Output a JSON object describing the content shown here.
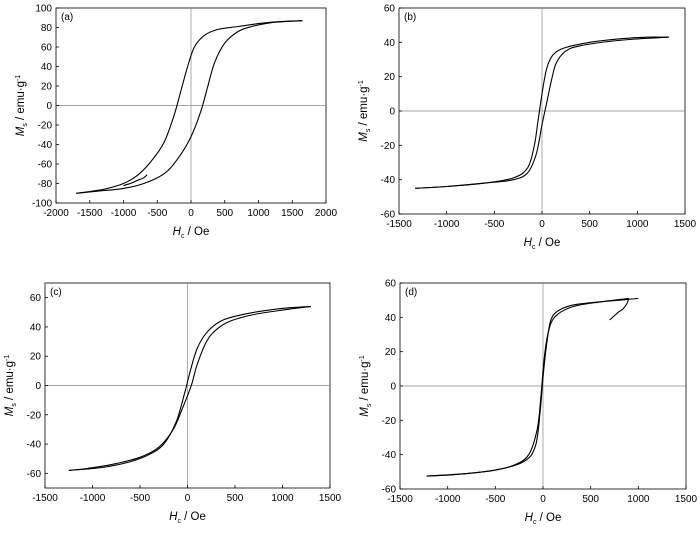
{
  "chart_data": [
    {
      "type": "line",
      "panel_label": "(a)",
      "xlabel_main": "H",
      "xlabel_sub": "c",
      "xlabel_unit": " / Oe",
      "ylabel_main": "M",
      "ylabel_sub": "s",
      "ylabel_unit": " / emu·g",
      "ylabel_sup": "-1",
      "xlim": [
        -2000,
        2000
      ],
      "ylim": [
        -100,
        100
      ],
      "xticks": [
        -2000,
        -1500,
        -1000,
        -500,
        0,
        500,
        1000,
        1500,
        2000
      ],
      "yticks": [
        -100,
        -80,
        -60,
        -40,
        -20,
        0,
        20,
        40,
        60,
        80,
        100
      ],
      "grid": false,
      "series": [
        {
          "points": [
            [
              1650,
              87
            ],
            [
              1200,
              85
            ],
            [
              900,
              81
            ],
            [
              700,
              76
            ],
            [
              500,
              64
            ],
            [
              350,
              44
            ],
            [
              250,
              20
            ],
            [
              150,
              -5
            ],
            [
              0,
              -32
            ],
            [
              -200,
              -55
            ],
            [
              -400,
              -70
            ],
            [
              -700,
              -80
            ],
            [
              -1000,
              -85
            ],
            [
              -1400,
              -88
            ],
            [
              -1700,
              -90
            ]
          ]
        },
        {
          "points": [
            [
              -1700,
              -90
            ],
            [
              -1300,
              -86
            ],
            [
              -1000,
              -80
            ],
            [
              -800,
              -72
            ],
            [
              -600,
              -58
            ],
            [
              -400,
              -38
            ],
            [
              -250,
              -10
            ],
            [
              -150,
              15
            ],
            [
              -50,
              40
            ],
            [
              50,
              60
            ],
            [
              200,
              72
            ],
            [
              400,
              78
            ],
            [
              700,
              81
            ],
            [
              1000,
              84
            ],
            [
              1300,
              86
            ],
            [
              1650,
              87
            ]
          ]
        },
        {
          "points": [
            [
              -650,
              -71
            ],
            [
              -700,
              -74
            ],
            [
              -800,
              -77
            ],
            [
              -900,
              -80
            ],
            [
              -1000,
              -82
            ]
          ]
        }
      ]
    },
    {
      "type": "line",
      "panel_label": "(b)",
      "xlabel_main": "H",
      "xlabel_sub": "c",
      "xlabel_unit": " / Oe",
      "ylabel_main": "M",
      "ylabel_sub": "s",
      "ylabel_unit": " / emu·g",
      "ylabel_sup": "-1",
      "xlim": [
        -1500,
        1500
      ],
      "ylim": [
        -60,
        60
      ],
      "xticks": [
        -1500,
        -1000,
        -500,
        0,
        500,
        1000,
        1500
      ],
      "yticks": [
        -60,
        -40,
        -20,
        0,
        20,
        40,
        60
      ],
      "grid": false,
      "series": [
        {
          "points": [
            [
              1330,
              43
            ],
            [
              1000,
              42
            ],
            [
              700,
              40.5
            ],
            [
              400,
              38
            ],
            [
              250,
              35
            ],
            [
              150,
              28
            ],
            [
              100,
              18
            ],
            [
              50,
              5
            ],
            [
              0,
              -8
            ],
            [
              -60,
              -25
            ],
            [
              -150,
              -36
            ],
            [
              -300,
              -40
            ],
            [
              -600,
              -42
            ],
            [
              -1000,
              -44
            ],
            [
              -1330,
              -45
            ]
          ]
        },
        {
          "points": [
            [
              -1330,
              -45
            ],
            [
              -1000,
              -44
            ],
            [
              -600,
              -42
            ],
            [
              -300,
              -39
            ],
            [
              -150,
              -33
            ],
            [
              -80,
              -20
            ],
            [
              -40,
              -5
            ],
            [
              0,
              10
            ],
            [
              50,
              25
            ],
            [
              120,
              33
            ],
            [
              250,
              37
            ],
            [
              500,
              40
            ],
            [
              800,
              42
            ],
            [
              1100,
              43
            ],
            [
              1330,
              43
            ]
          ]
        }
      ]
    },
    {
      "type": "line",
      "panel_label": "(c)",
      "xlabel_main": "H",
      "xlabel_sub": "c",
      "xlabel_unit": " / Oe",
      "ylabel_main": "M",
      "ylabel_sub": "s",
      "ylabel_unit": " / emu·g",
      "ylabel_sup": "-1",
      "xlim": [
        -1500,
        1500
      ],
      "ylim": [
        -70,
        70
      ],
      "xticks": [
        -1500,
        -1000,
        -500,
        0,
        500,
        1000,
        1500
      ],
      "yticks": [
        -60,
        -40,
        -20,
        0,
        20,
        40,
        60
      ],
      "grid": false,
      "series": [
        {
          "points": [
            [
              1300,
              54
            ],
            [
              1000,
              51.5
            ],
            [
              700,
              48.5
            ],
            [
              450,
              44
            ],
            [
              300,
              38
            ],
            [
              200,
              30
            ],
            [
              100,
              14
            ],
            [
              40,
              0
            ],
            [
              -50,
              -15
            ],
            [
              -150,
              -30
            ],
            [
              -300,
              -42
            ],
            [
              -500,
              -49
            ],
            [
              -800,
              -54
            ],
            [
              -1100,
              -57
            ],
            [
              -1250,
              -58
            ]
          ]
        },
        {
          "points": [
            [
              -1250,
              -58
            ],
            [
              -900,
              -56
            ],
            [
              -600,
              -52
            ],
            [
              -400,
              -47
            ],
            [
              -250,
              -40
            ],
            [
              -120,
              -25
            ],
            [
              -30,
              -5
            ],
            [
              30,
              10
            ],
            [
              100,
              25
            ],
            [
              200,
              36
            ],
            [
              350,
              44
            ],
            [
              550,
              48
            ],
            [
              800,
              51
            ],
            [
              1050,
              53
            ],
            [
              1300,
              54
            ]
          ]
        }
      ]
    },
    {
      "type": "line",
      "panel_label": "(d)",
      "xlabel_main": "H",
      "xlabel_sub": "c",
      "xlabel_unit": " / Oe",
      "ylabel_main": "M",
      "ylabel_sub": "s",
      "ylabel_unit": " / emu·g",
      "ylabel_sup": "-1",
      "xlim": [
        -1500,
        1500
      ],
      "ylim": [
        -60,
        60
      ],
      "xticks": [
        -1500,
        -1000,
        -500,
        0,
        500,
        1000,
        1500
      ],
      "yticks": [
        -60,
        -40,
        -20,
        0,
        20,
        40,
        60
      ],
      "grid": false,
      "series": [
        {
          "points": [
            [
              1000,
              51
            ],
            [
              800,
              50
            ],
            [
              500,
              48.5
            ],
            [
              300,
              47
            ],
            [
              150,
              43.5
            ],
            [
              80,
              38
            ],
            [
              40,
              25
            ],
            [
              0,
              5
            ],
            [
              -30,
              -15
            ],
            [
              -80,
              -35
            ],
            [
              -200,
              -44
            ],
            [
              -500,
              -49
            ],
            [
              -900,
              -51.5
            ],
            [
              -1220,
              -52.5
            ]
          ]
        },
        {
          "points": [
            [
              -1220,
              -52.5
            ],
            [
              -800,
              -51
            ],
            [
              -500,
              -49
            ],
            [
              -300,
              -46
            ],
            [
              -150,
              -40
            ],
            [
              -60,
              -25
            ],
            [
              -20,
              -5
            ],
            [
              10,
              15
            ],
            [
              50,
              30
            ],
            [
              120,
              40
            ],
            [
              300,
              46
            ],
            [
              600,
              49
            ],
            [
              900,
              51
            ]
          ]
        },
        {
          "points": [
            [
              900,
              51
            ],
            [
              880,
              48
            ],
            [
              840,
              45
            ],
            [
              790,
              43
            ],
            [
              740,
              40.5
            ],
            [
              700,
              38.5
            ]
          ]
        }
      ]
    }
  ]
}
